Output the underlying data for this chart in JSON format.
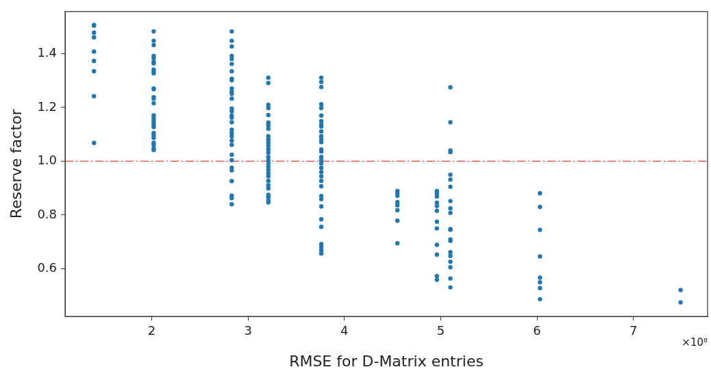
{
  "chart_data": {
    "type": "scatter",
    "xlabel": "RMSE for D-Matrix entries",
    "ylabel": "Reserve factor",
    "annotations": [
      "×10⁸"
    ],
    "series": [
      {
        "color": "#1f77b4",
        "x": [
          1.4,
          1.4,
          1.4,
          1.4,
          1.4,
          1.4,
          1.4,
          1.4,
          1.4,
          2.02,
          2.02,
          2.02,
          2.02,
          2.02,
          2.02,
          2.02,
          2.02,
          2.02,
          2.02,
          2.02,
          2.02,
          2.02,
          2.02,
          2.02,
          2.02,
          2.02,
          2.02,
          2.02,
          2.02,
          2.02,
          2.02,
          2.02,
          2.02,
          2.02,
          2.02,
          2.02,
          2.02,
          2.83,
          2.83,
          2.83,
          2.83,
          2.83,
          2.83,
          2.83,
          2.83,
          2.83,
          2.83,
          2.83,
          2.83,
          2.83,
          2.83,
          2.83,
          2.83,
          2.83,
          2.83,
          2.83,
          2.83,
          2.83,
          2.83,
          2.83,
          2.83,
          2.83,
          2.83,
          2.83,
          2.83,
          2.83,
          2.83,
          2.83,
          3.21,
          3.21,
          3.21,
          3.21,
          3.21,
          3.21,
          3.21,
          3.21,
          3.21,
          3.21,
          3.21,
          3.21,
          3.21,
          3.21,
          3.21,
          3.21,
          3.21,
          3.21,
          3.21,
          3.21,
          3.21,
          3.21,
          3.21,
          3.21,
          3.21,
          3.21,
          3.21,
          3.21,
          3.76,
          3.76,
          3.76,
          3.76,
          3.76,
          3.76,
          3.76,
          3.76,
          3.76,
          3.76,
          3.76,
          3.76,
          3.76,
          3.76,
          3.76,
          3.76,
          3.76,
          3.76,
          3.76,
          3.76,
          3.76,
          3.76,
          3.76,
          3.76,
          3.76,
          3.76,
          3.76,
          3.76,
          3.76,
          3.76,
          3.76,
          3.76,
          4.55,
          4.55,
          4.55,
          4.55,
          4.55,
          4.55,
          4.55,
          4.55,
          4.96,
          4.96,
          4.96,
          4.96,
          4.96,
          4.96,
          4.96,
          4.96,
          4.96,
          4.96,
          4.96,
          4.96,
          5.1,
          5.1,
          5.1,
          5.1,
          5.1,
          5.1,
          5.1,
          5.1,
          5.1,
          5.1,
          5.1,
          5.1,
          5.1,
          5.1,
          5.1,
          5.1,
          5.1,
          5.1,
          5.1,
          5.1,
          6.03,
          6.03,
          6.03,
          6.03,
          6.03,
          6.03,
          6.03,
          6.03,
          7.49,
          7.49
        ],
        "values": [
          1.507,
          1.504,
          1.478,
          1.461,
          1.408,
          1.373,
          1.335,
          1.242,
          1.068,
          1.483,
          1.448,
          1.432,
          1.392,
          1.384,
          1.37,
          1.364,
          1.341,
          1.333,
          1.327,
          1.271,
          1.268,
          1.238,
          1.233,
          1.216,
          1.171,
          1.163,
          1.153,
          1.145,
          1.136,
          1.127,
          1.105,
          1.097,
          1.087,
          1.069,
          1.061,
          1.048,
          1.042,
          1.483,
          1.448,
          1.427,
          1.392,
          1.381,
          1.362,
          1.335,
          1.307,
          1.301,
          1.271,
          1.259,
          1.251,
          1.233,
          1.196,
          1.186,
          1.17,
          1.162,
          1.145,
          1.117,
          1.105,
          1.093,
          1.077,
          1.061,
          1.024,
          1.004,
          0.976,
          0.966,
          0.926,
          0.872,
          0.863,
          0.84,
          1.311,
          1.291,
          1.21,
          1.198,
          1.172,
          1.144,
          1.133,
          1.121,
          1.093,
          1.081,
          1.069,
          1.057,
          1.044,
          1.032,
          1.016,
          1.004,
          0.992,
          0.98,
          0.968,
          0.956,
          0.944,
          0.927,
          0.911,
          0.899,
          0.875,
          0.867,
          0.855,
          0.847,
          1.311,
          1.295,
          1.276,
          1.212,
          1.198,
          1.17,
          1.15,
          1.137,
          1.129,
          1.111,
          1.093,
          1.081,
          1.071,
          1.044,
          1.036,
          1.016,
          1.004,
          0.992,
          0.976,
          0.96,
          0.944,
          0.927,
          0.907,
          0.871,
          0.859,
          0.832,
          0.784,
          0.756,
          0.692,
          0.681,
          0.669,
          0.657,
          0.889,
          0.881,
          0.872,
          0.848,
          0.836,
          0.818,
          0.779,
          0.695,
          0.889,
          0.881,
          0.869,
          0.846,
          0.834,
          0.816,
          0.775,
          0.75,
          0.689,
          0.653,
          0.573,
          0.559,
          1.275,
          1.145,
          1.04,
          1.034,
          0.95,
          0.932,
          0.905,
          0.852,
          0.825,
          0.808,
          0.748,
          0.745,
          0.709,
          0.704,
          0.662,
          0.648,
          0.626,
          0.606,
          0.564,
          0.531,
          0.881,
          0.83,
          0.745,
          0.646,
          0.567,
          0.55,
          0.528,
          0.487,
          0.521,
          0.475
        ]
      }
    ],
    "xlim": [
      1.1,
      7.77
    ],
    "xticks": [
      2,
      3,
      4,
      5,
      6,
      7
    ],
    "ylim": [
      0.423,
      1.557
    ],
    "yticks": [
      0.6,
      0.8,
      {
        "value": 1,
        "label": "1.0"
      },
      1.2,
      1.4
    ],
    "ref_lines": [
      {
        "axis": "y",
        "value": 1.0,
        "color": "#e8423a",
        "line_style": "dashdot"
      }
    ],
    "grid": false,
    "legend": false,
    "marker": "circle"
  }
}
